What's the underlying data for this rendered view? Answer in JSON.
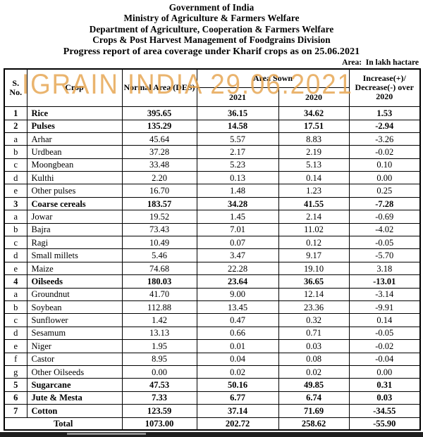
{
  "title": {
    "lines": [
      "Government of India",
      "Ministry of Agriculture & Farmers Welfare",
      "Department of Agriculture, Cooperation & Farmers Welfare",
      "Crops & Post Harvest Management of Foodgrains Division",
      "Progress report of area coverage under Kharif crops as on 25.06.2021"
    ],
    "area_note": "Area:  In lakh hactare"
  },
  "watermark": {
    "text": "IGRAIN INDIA 29.06.2021",
    "color": "#e5a24a"
  },
  "table": {
    "headers": {
      "sno": "S.\nNo.",
      "crop": "Crop",
      "normal_area": "Normal Area (DES)",
      "area_sown": "Area Sown",
      "y2021": "2021",
      "y2020": "2020",
      "change": "Increase(+)/\nDecrease(-) over\n2020"
    },
    "rows": [
      {
        "sno": "1",
        "crop": "Rice",
        "normal": "395.65",
        "y2021": "36.15",
        "y2020": "34.62",
        "change": "1.53",
        "bold": true
      },
      {
        "sno": "2",
        "crop": "Pulses",
        "normal": "135.29",
        "y2021": "14.58",
        "y2020": "17.51",
        "change": "-2.94",
        "bold": true
      },
      {
        "sno": "a",
        "crop": "Arhar",
        "normal": "45.64",
        "y2021": "5.57",
        "y2020": "8.83",
        "change": "-3.26",
        "bold": false
      },
      {
        "sno": "b",
        "crop": "Urdbean",
        "normal": "37.28",
        "y2021": "2.17",
        "y2020": "2.19",
        "change": "-0.02",
        "bold": false
      },
      {
        "sno": "c",
        "crop": "Moongbean",
        "normal": "33.48",
        "y2021": "5.23",
        "y2020": "5.13",
        "change": "0.10",
        "bold": false
      },
      {
        "sno": "d",
        "crop": "Kulthi",
        "normal": "2.20",
        "y2021": "0.13",
        "y2020": "0.14",
        "change": "0.00",
        "bold": false
      },
      {
        "sno": "e",
        "crop": "Other pulses",
        "normal": "16.70",
        "y2021": "1.48",
        "y2020": "1.23",
        "change": "0.25",
        "bold": false
      },
      {
        "sno": "3",
        "crop": "Coarse cereals",
        "normal": "183.57",
        "y2021": "34.28",
        "y2020": "41.55",
        "change": "-7.28",
        "bold": true
      },
      {
        "sno": "a",
        "crop": "Jowar",
        "normal": "19.52",
        "y2021": "1.45",
        "y2020": "2.14",
        "change": "-0.69",
        "bold": false
      },
      {
        "sno": "b",
        "crop": "Bajra",
        "normal": "73.43",
        "y2021": "7.01",
        "y2020": "11.02",
        "change": "-4.02",
        "bold": false
      },
      {
        "sno": "c",
        "crop": "Ragi",
        "normal": "10.49",
        "y2021": "0.07",
        "y2020": "0.12",
        "change": "-0.05",
        "bold": false
      },
      {
        "sno": "d",
        "crop": "Small millets",
        "normal": "5.46",
        "y2021": "3.47",
        "y2020": "9.17",
        "change": "-5.70",
        "bold": false
      },
      {
        "sno": "e",
        "crop": "Maize",
        "normal": "74.68",
        "y2021": "22.28",
        "y2020": "19.10",
        "change": "3.18",
        "bold": false
      },
      {
        "sno": "4",
        "crop": "Oilseeds",
        "normal": "180.03",
        "y2021": "23.64",
        "y2020": "36.65",
        "change": "-13.01",
        "bold": true
      },
      {
        "sno": "a",
        "crop": "Groundnut",
        "normal": "41.70",
        "y2021": "9.00",
        "y2020": "12.14",
        "change": "-3.14",
        "bold": false
      },
      {
        "sno": "b",
        "crop": "Soybean",
        "normal": "112.88",
        "y2021": "13.45",
        "y2020": "23.36",
        "change": "-9.91",
        "bold": false
      },
      {
        "sno": "c",
        "crop": "Sunflower",
        "normal": "1.42",
        "y2021": "0.47",
        "y2020": "0.32",
        "change": "0.14",
        "bold": false
      },
      {
        "sno": "d",
        "crop": "Sesamum",
        "normal": "13.13",
        "y2021": "0.66",
        "y2020": "0.71",
        "change": "-0.05",
        "bold": false
      },
      {
        "sno": "e",
        "crop": "Niger",
        "normal": "1.95",
        "y2021": "0.01",
        "y2020": "0.03",
        "change": "-0.02",
        "bold": false
      },
      {
        "sno": "f",
        "crop": "Castor",
        "normal": "8.95",
        "y2021": "0.04",
        "y2020": "0.08",
        "change": "-0.04",
        "bold": false
      },
      {
        "sno": "g",
        "crop": "Other Oilseeds",
        "normal": "0.00",
        "y2021": "0.02",
        "y2020": "0.02",
        "change": "0.00",
        "bold": false
      },
      {
        "sno": "5",
        "crop": "Sugarcane",
        "normal": "47.53",
        "y2021": "50.16",
        "y2020": "49.85",
        "change": "0.31",
        "bold": true
      },
      {
        "sno": "6",
        "crop": "Jute & Mesta",
        "normal": "7.33",
        "y2021": "6.77",
        "y2020": "6.74",
        "change": "0.03",
        "bold": true
      },
      {
        "sno": "7",
        "crop": "Cotton",
        "normal": "123.59",
        "y2021": "37.14",
        "y2020": "71.69",
        "change": "-34.55",
        "bold": true
      }
    ],
    "total": {
      "label": "Total",
      "normal": "1073.00",
      "y2021": "202.72",
      "y2020": "258.62",
      "change": "-55.90"
    }
  },
  "colors": {
    "bottom_bar": "#1e1e1e",
    "bottom_bar_patch": "#8a8a8a"
  }
}
